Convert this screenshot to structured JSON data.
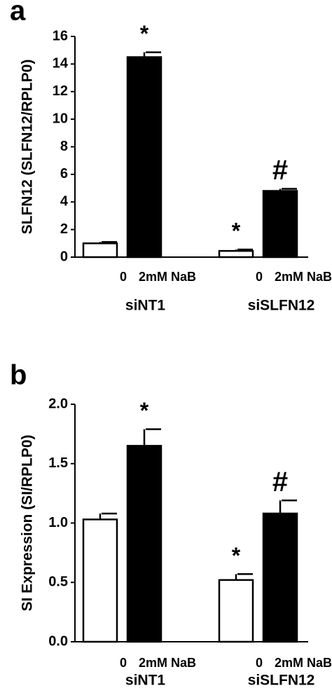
{
  "chart_data": [
    {
      "type": "bar",
      "panel_label": "a",
      "ylabel": "SLFN12 (SLFN12/RPLP0)",
      "categories": [
        "0",
        "2mM NaB",
        "0",
        "2mM NaB"
      ],
      "groups": [
        "siNT1",
        "siSLFN12"
      ],
      "values": [
        1.0,
        14.5,
        0.45,
        4.8
      ],
      "errors": [
        0.1,
        0.35,
        0.1,
        0.15
      ],
      "colors": [
        "#ffffff",
        "#000000",
        "#ffffff",
        "#000000"
      ],
      "annotations": [
        null,
        "*",
        "*",
        "#"
      ],
      "ylim": [
        0,
        16
      ],
      "yticks": [
        0,
        2,
        4,
        6,
        8,
        10,
        12,
        14,
        16
      ]
    },
    {
      "type": "bar",
      "panel_label": "b",
      "ylabel": "SI Expression (SI/RPLP0)",
      "categories": [
        "0",
        "2mM NaB",
        "0",
        "2mM NaB"
      ],
      "groups": [
        "siNT1",
        "siSLFN12"
      ],
      "values": [
        1.03,
        1.65,
        0.52,
        1.08
      ],
      "errors": [
        0.05,
        0.14,
        0.05,
        0.11
      ],
      "colors": [
        "#ffffff",
        "#000000",
        "#ffffff",
        "#000000"
      ],
      "annotations": [
        null,
        "*",
        "*",
        "#"
      ],
      "ylim": [
        0,
        2.0
      ],
      "yticks": [
        {
          "value": 0,
          "label": "0.0"
        },
        {
          "value": 0.5,
          "label": "0.5"
        },
        {
          "value": 1.0,
          "label": "1.0"
        },
        {
          "value": 1.5,
          "label": "1.5"
        },
        {
          "value": 2.0,
          "label": "2.0"
        }
      ]
    }
  ]
}
